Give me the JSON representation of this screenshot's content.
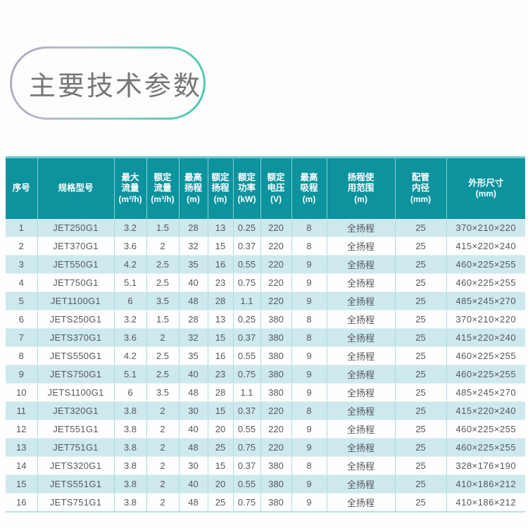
{
  "page": {
    "title": "主要技术参数"
  },
  "colors": {
    "header_bg": "#0d939e",
    "row_alt_bg": "#cde9ee",
    "accent_teal": "#46cab2",
    "header_text": "#ffffff",
    "body_text": "#54585c"
  },
  "table": {
    "columns": [
      {
        "key": "index",
        "lines": [
          "序号"
        ]
      },
      {
        "key": "model",
        "lines": [
          "规格型号"
        ]
      },
      {
        "key": "max-flow",
        "lines": [
          "最大",
          "流量",
          "(m³/h)"
        ]
      },
      {
        "key": "rated-flow",
        "lines": [
          "额定",
          "流量",
          "(m³/h)"
        ]
      },
      {
        "key": "max-head",
        "lines": [
          "最高",
          "扬程",
          "(m)"
        ]
      },
      {
        "key": "rated-head",
        "lines": [
          "额定",
          "扬程",
          "(m)"
        ]
      },
      {
        "key": "rated-power",
        "lines": [
          "额定",
          "功率",
          "(kW)"
        ]
      },
      {
        "key": "rated-voltage",
        "lines": [
          "额定",
          "电压",
          "(V)"
        ]
      },
      {
        "key": "max-suction",
        "lines": [
          "最高",
          "吸程",
          "(m)"
        ]
      },
      {
        "key": "head-range",
        "lines": [
          "扬程使",
          "用范围",
          "(m)"
        ]
      },
      {
        "key": "pipe-diameter",
        "lines": [
          "配管",
          "内径",
          "(mm)"
        ]
      },
      {
        "key": "dimensions",
        "lines": [
          "外形尺寸",
          "(mm)"
        ]
      }
    ],
    "rows": [
      [
        "1",
        "JET250G1",
        "3.2",
        "1.5",
        "28",
        "13",
        "0.25",
        "220",
        "8",
        "全扬程",
        "25",
        "370×210×220"
      ],
      [
        "2",
        "JET370G1",
        "3.6",
        "2",
        "32",
        "15",
        "0.37",
        "220",
        "8",
        "全扬程",
        "25",
        "415×220×240"
      ],
      [
        "3",
        "JET550G1",
        "4.2",
        "2.5",
        "35",
        "16",
        "0.55",
        "220",
        "9",
        "全扬程",
        "25",
        "460×225×255"
      ],
      [
        "4",
        "JET750G1",
        "5.1",
        "2.5",
        "40",
        "23",
        "0.75",
        "220",
        "9",
        "全扬程",
        "25",
        "460×225×255"
      ],
      [
        "5",
        "JET1100G1",
        "6",
        "3.5",
        "48",
        "28",
        "1.1",
        "220",
        "9",
        "全扬程",
        "25",
        "485×245×270"
      ],
      [
        "6",
        "JETS250G1",
        "3.2",
        "1.5",
        "28",
        "13",
        "0.25",
        "380",
        "8",
        "全扬程",
        "25",
        "370×210×220"
      ],
      [
        "7",
        "JETS370G1",
        "3.6",
        "2",
        "32",
        "15",
        "0.37",
        "380",
        "8",
        "全扬程",
        "25",
        "415×220×240"
      ],
      [
        "8",
        "JETS550G1",
        "4.2",
        "2.5",
        "35",
        "16",
        "0.55",
        "380",
        "9",
        "全扬程",
        "25",
        "460×225×255"
      ],
      [
        "9",
        "JETS750G1",
        "5.1",
        "2.5",
        "40",
        "23",
        "0.75",
        "380",
        "9",
        "全扬程",
        "25",
        "460×225×255"
      ],
      [
        "10",
        "JETS1100G1",
        "6",
        "3.5",
        "48",
        "28",
        "1.1",
        "380",
        "9",
        "全扬程",
        "25",
        "485×245×270"
      ],
      [
        "11",
        "JET320G1",
        "3.8",
        "2",
        "30",
        "15",
        "0.37",
        "220",
        "8",
        "全扬程",
        "25",
        "415×220×240"
      ],
      [
        "12",
        "JET551G1",
        "3.8",
        "2",
        "40",
        "20",
        "0.55",
        "220",
        "9",
        "全扬程",
        "25",
        "460×225×255"
      ],
      [
        "13",
        "JET751G1",
        "3.8",
        "2",
        "48",
        "25",
        "0.75",
        "220",
        "9",
        "全扬程",
        "25",
        "460×225×255"
      ],
      [
        "14",
        "JETS320G1",
        "3.8",
        "2",
        "30",
        "15",
        "0.37",
        "380",
        "8",
        "全扬程",
        "25",
        "328×176×190"
      ],
      [
        "15",
        "JETS551G1",
        "3.8",
        "2",
        "40",
        "20",
        "0.55",
        "380",
        "9",
        "全扬程",
        "25",
        "410×186×212"
      ],
      [
        "16",
        "JETS751G1",
        "3.8",
        "2",
        "48",
        "25",
        "0.75",
        "380",
        "9",
        "全扬程",
        "25",
        "410×186×212"
      ]
    ]
  }
}
